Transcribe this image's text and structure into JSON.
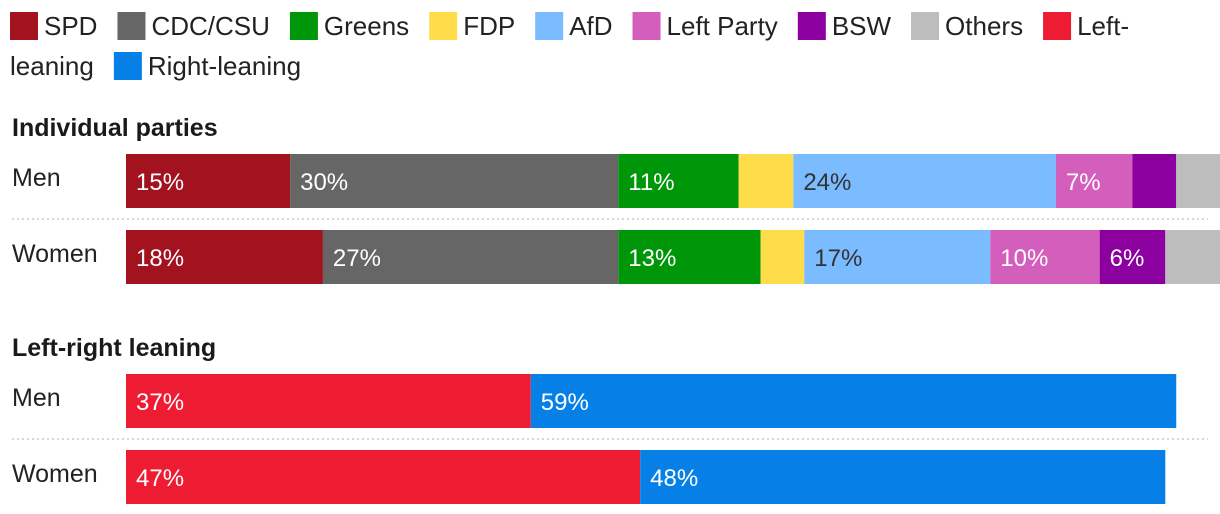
{
  "chart_data": {
    "type": "bar",
    "orientation": "horizontal",
    "stacked": true,
    "legend": {
      "placement": "top-left",
      "items": [
        {
          "key": "spd",
          "name": "SPD",
          "color": "#a3121f"
        },
        {
          "key": "cdu",
          "name": "CDC/CSU",
          "color": "#666666"
        },
        {
          "key": "greens",
          "name": "Greens",
          "color": "#00960a"
        },
        {
          "key": "fdp",
          "name": "FDP",
          "color": "#ffdd4a"
        },
        {
          "key": "afd",
          "name": "AfD",
          "color": "#7bbbff"
        },
        {
          "key": "left",
          "name": "Left Party",
          "color": "#d45ebb"
        },
        {
          "key": "bsw",
          "name": "BSW",
          "color": "#8c00a0"
        },
        {
          "key": "others",
          "name": "Others",
          "color": "#bdbdbd"
        },
        {
          "key": "leftlean",
          "name": "Left-leaning",
          "color": "#ee1c33"
        },
        {
          "key": "rightlean",
          "name": "Right-leaning",
          "color": "#0680e6"
        }
      ]
    },
    "xlim": [
      0,
      100
    ],
    "panels": [
      {
        "title": "Individual parties",
        "rows": [
          {
            "label": "Men",
            "segments": [
              {
                "series": "spd",
                "value": 15,
                "label": "15%"
              },
              {
                "series": "cdu",
                "value": 30,
                "label": "30%"
              },
              {
                "series": "greens",
                "value": 11,
                "label": "11%"
              },
              {
                "series": "fdp",
                "value": 5,
                "label": ""
              },
              {
                "series": "afd",
                "value": 24,
                "label": "24%"
              },
              {
                "series": "left",
                "value": 7,
                "label": "7%"
              },
              {
                "series": "bsw",
                "value": 4,
                "label": ""
              },
              {
                "series": "others",
                "value": 4,
                "label": ""
              }
            ]
          },
          {
            "label": "Women",
            "segments": [
              {
                "series": "spd",
                "value": 18,
                "label": "18%"
              },
              {
                "series": "cdu",
                "value": 27,
                "label": "27%"
              },
              {
                "series": "greens",
                "value": 13,
                "label": "13%"
              },
              {
                "series": "fdp",
                "value": 4,
                "label": ""
              },
              {
                "series": "afd",
                "value": 17,
                "label": "17%"
              },
              {
                "series": "left",
                "value": 10,
                "label": "10%"
              },
              {
                "series": "bsw",
                "value": 6,
                "label": "6%"
              },
              {
                "series": "others",
                "value": 5,
                "label": ""
              }
            ]
          }
        ]
      },
      {
        "title": "Left-right leaning",
        "rows": [
          {
            "label": "Men",
            "segments": [
              {
                "series": "leftlean",
                "value": 37,
                "label": "37%"
              },
              {
                "series": "rightlean",
                "value": 59,
                "label": "59%"
              }
            ]
          },
          {
            "label": "Women",
            "segments": [
              {
                "series": "leftlean",
                "value": 47,
                "label": "47%"
              },
              {
                "series": "rightlean",
                "value": 48,
                "label": "48%"
              }
            ]
          }
        ]
      }
    ]
  }
}
